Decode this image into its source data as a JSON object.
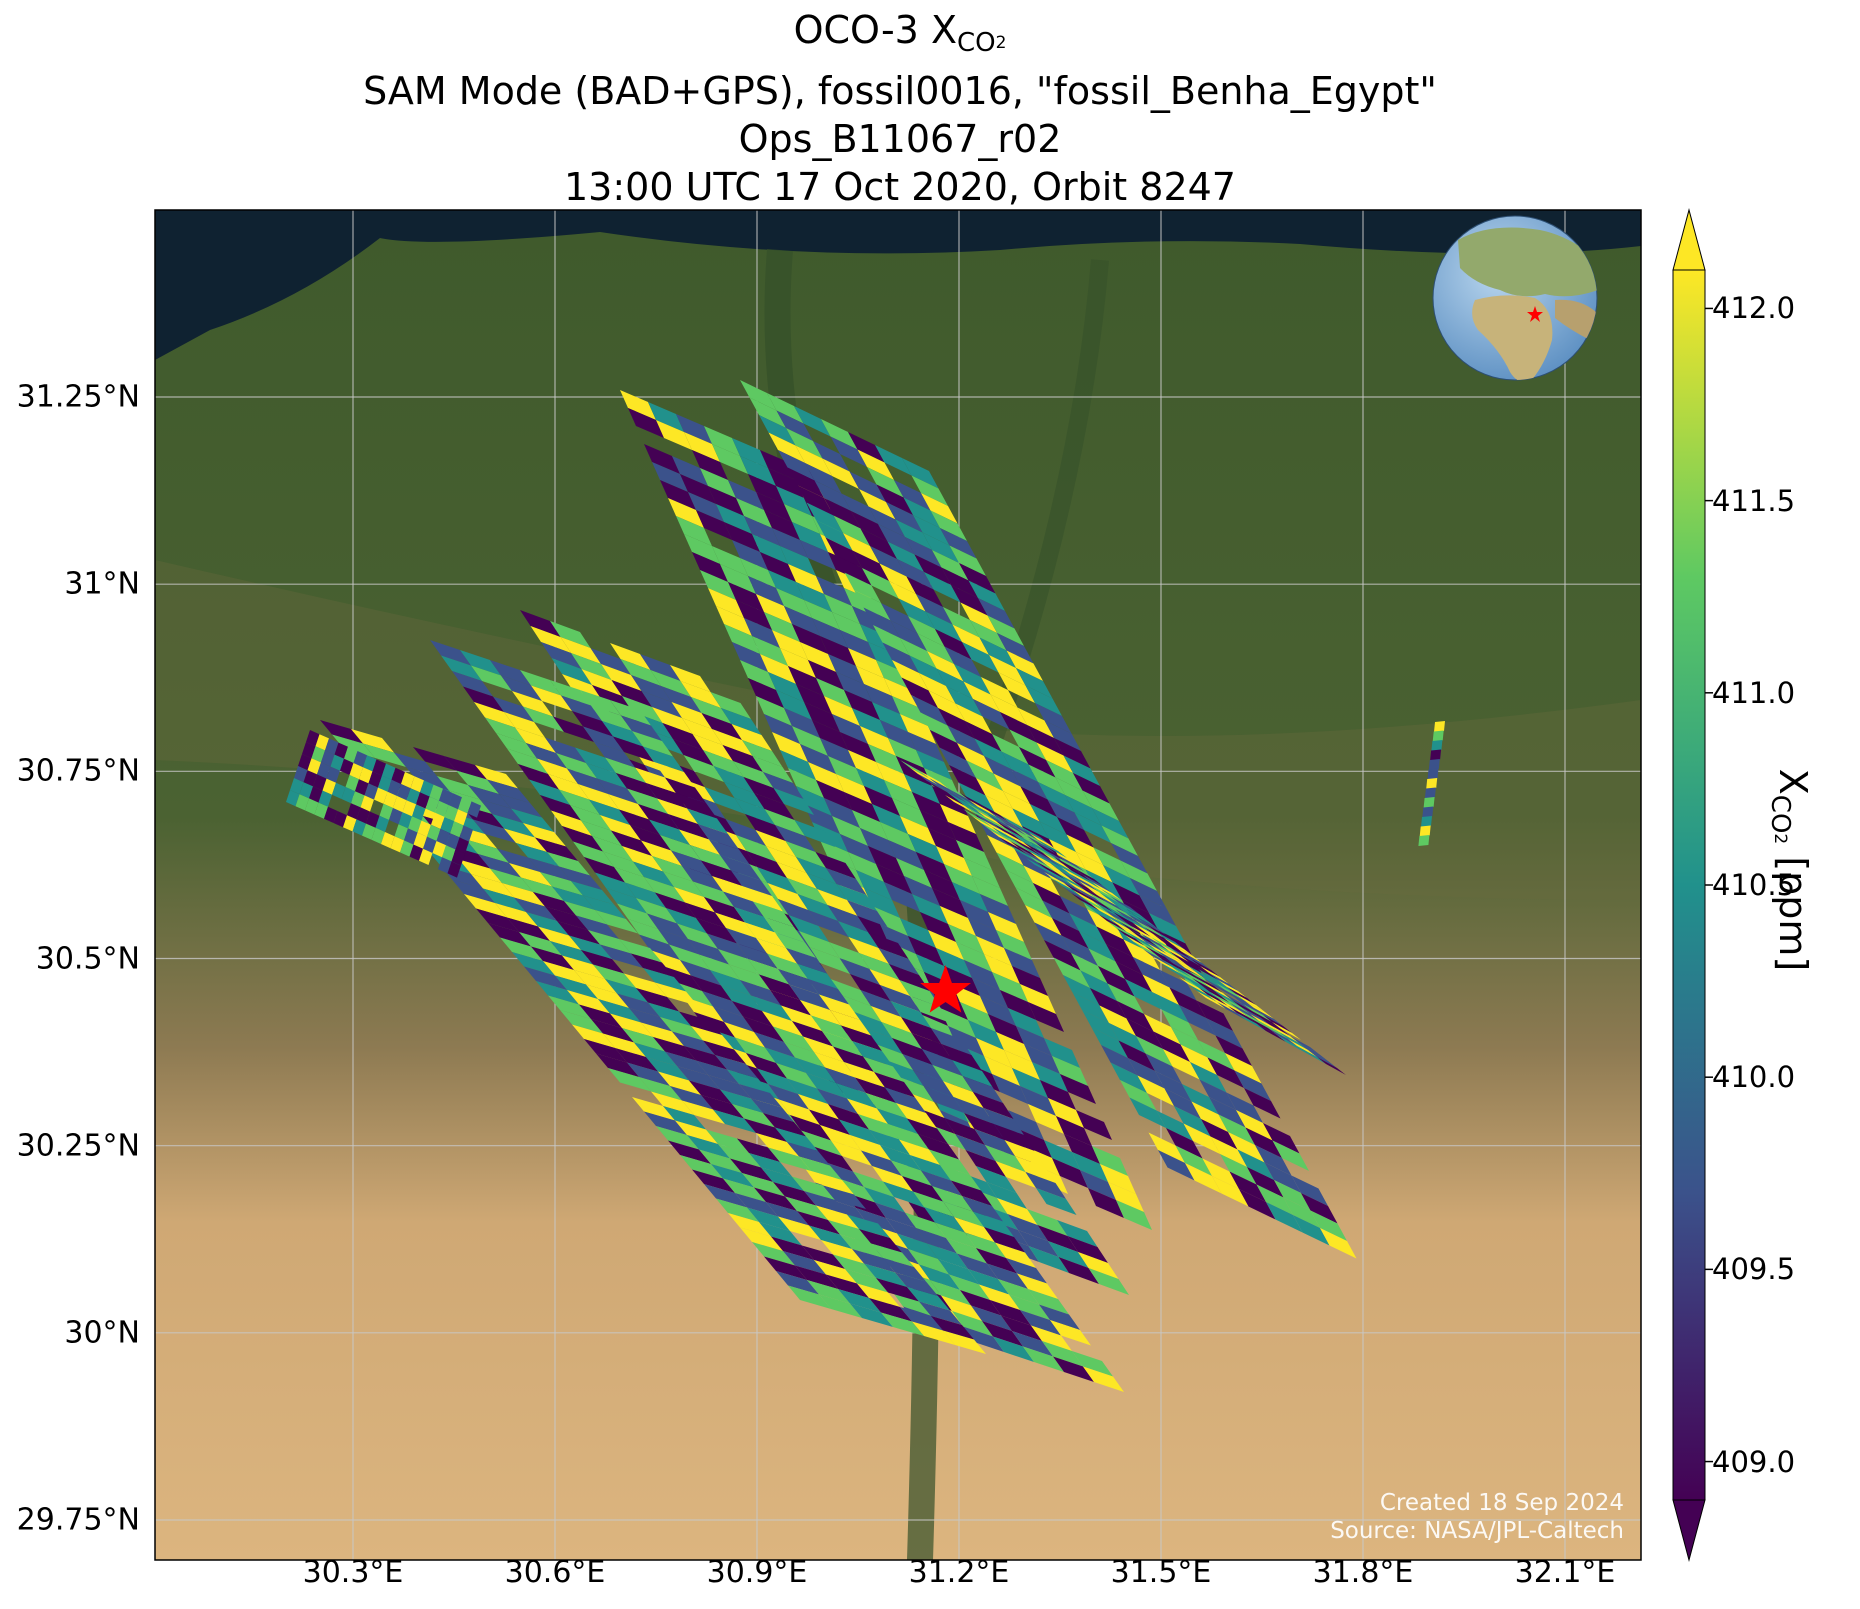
{
  "title": {
    "line1_prefix": "OCO-3 X",
    "line1_sub": "CO",
    "line1_sub2": "2",
    "line2": "SAM Mode (BAD+GPS), fossil0016, \"fossil_Benha_Egypt\"",
    "line3": "Ops_B11067_r02",
    "line4": "13:00 UTC 17 Oct 2020, Orbit 8247"
  },
  "map": {
    "lat_ticks": [
      "31.25°N",
      "31°N",
      "30.75°N",
      "30.5°N",
      "30.25°N",
      "30°N",
      "29.75°N"
    ],
    "lon_ticks": [
      "30.3°E",
      "30.6°E",
      "30.9°E",
      "31.2°E",
      "31.5°E",
      "31.8°E",
      "32.1°E"
    ],
    "lat_values": [
      31.25,
      31.0,
      30.75,
      30.5,
      30.25,
      30.0,
      29.75
    ],
    "lon_values": [
      30.3,
      30.6,
      30.9,
      31.2,
      31.5,
      31.8,
      32.1
    ],
    "target_marker": {
      "name": "red-star",
      "color": "#ff0000",
      "lon": 31.18,
      "lat": 30.46
    },
    "inset_globe": {
      "marker_color": "#ff0000"
    }
  },
  "colorbar": {
    "ticks": [
      "412.0",
      "411.5",
      "411.0",
      "410.5",
      "410.0",
      "409.5",
      "409.0"
    ],
    "tick_values": [
      412.0,
      411.5,
      411.0,
      410.5,
      410.0,
      409.5,
      409.0
    ],
    "range": [
      408.9,
      412.1
    ],
    "label_prefix": "X",
    "label_sub": "CO",
    "label_sub2": "2",
    "label_suffix": " [ppm]",
    "colormap": "viridis",
    "colors": [
      "#440154",
      "#3b528b",
      "#21918c",
      "#5ec962",
      "#fde725"
    ]
  },
  "credits": {
    "line1": "Created 18 Sep 2024",
    "line2": "Source: NASA/JPL-Caltech"
  }
}
